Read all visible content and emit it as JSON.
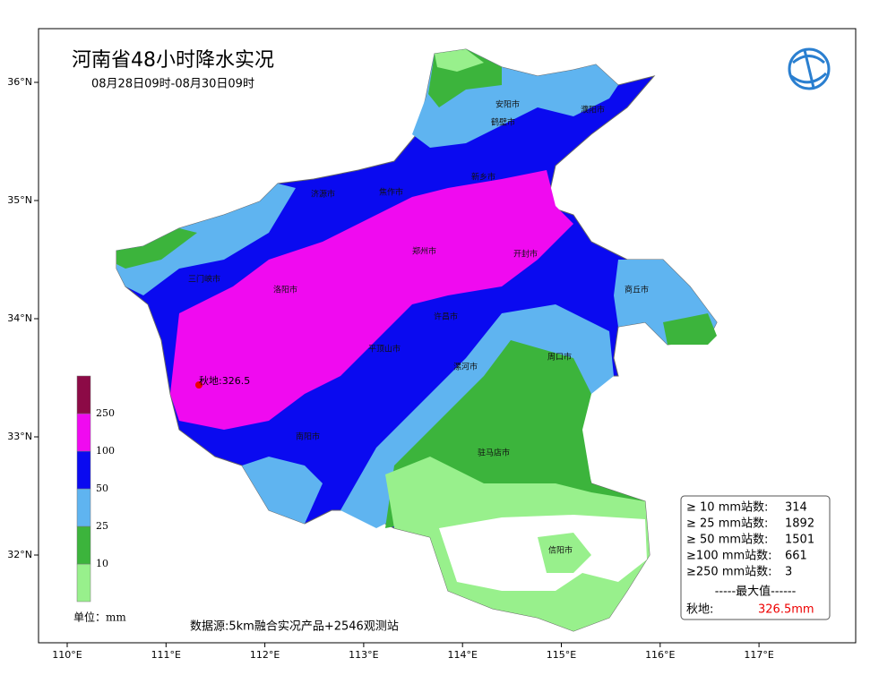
{
  "header": {
    "title": "河南省48小时降水实况",
    "subtitle": "08月28日09时-08月30日09时"
  },
  "axes": {
    "lat_ticks": [
      {
        "value": 36,
        "label": "36°N"
      },
      {
        "value": 35,
        "label": "35°N"
      },
      {
        "value": 34,
        "label": "34°N"
      },
      {
        "value": 33,
        "label": "33°N"
      },
      {
        "value": 32,
        "label": "32°N"
      }
    ],
    "lon_ticks": [
      {
        "value": 110,
        "label": "110°E"
      },
      {
        "value": 111,
        "label": "111°E"
      },
      {
        "value": 112,
        "label": "112°E"
      },
      {
        "value": 113,
        "label": "113°E"
      },
      {
        "value": 114,
        "label": "114°E"
      },
      {
        "value": 115,
        "label": "115°E"
      },
      {
        "value": 116,
        "label": "116°E"
      },
      {
        "value": 117,
        "label": "117°E"
      }
    ]
  },
  "legend": {
    "colors": [
      "#98f08c",
      "#3cb43c",
      "#5fb4f0",
      "#0a0af0",
      "#f00af0",
      "#8c0a46"
    ],
    "thresholds": [
      10,
      25,
      50,
      100,
      250
    ],
    "unit": "单位：mm"
  },
  "cities": [
    "安阳市",
    "鹤壁市",
    "濮阳市",
    "新乡市",
    "济源市",
    "焦作市",
    "郑州市",
    "开封市",
    "三门峡市",
    "洛阳市",
    "商丘市",
    "许昌市",
    "平顶山市",
    "漯河市",
    "周口市",
    "南阳市",
    "驻马店市",
    "信阳市"
  ],
  "max_point": "秋地:326.5",
  "source": "数据源:5km融合实况产品+2546观测站",
  "stats": {
    "rows": [
      {
        "label": "≥ 10 mm站数:",
        "value": 314
      },
      {
        "label": "≥ 25 mm站数:",
        "value": 1892
      },
      {
        "label": "≥ 50 mm站数:",
        "value": 1501
      },
      {
        "label": "≥100 mm站数:",
        "value": 661
      },
      {
        "label": "≥250 mm站数:",
        "value": 3
      }
    ],
    "max_header": "-----最大值------",
    "max_station": "秋地:",
    "max_value": "326.5mm"
  }
}
